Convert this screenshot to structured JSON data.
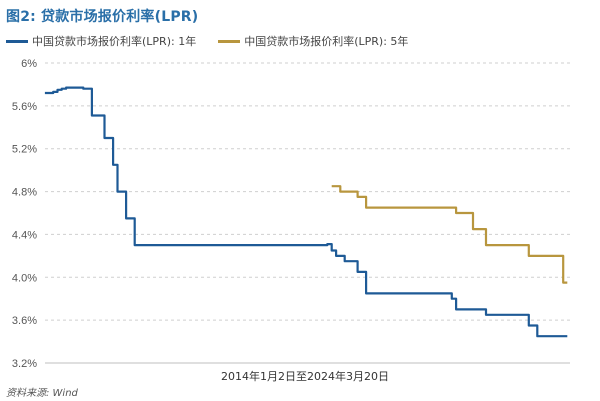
{
  "title": "图2: 贷款市场报价利率(LPR)",
  "source": "资料来源: Wind",
  "chart_data": {
    "type": "line",
    "xlabel": "2014年1月2日至2024年3月20日",
    "ylabel": "",
    "ylim": [
      3.2,
      6.0
    ],
    "yticks": [
      "6%",
      "5.6%",
      "5.2%",
      "4.8%",
      "4.4%",
      "4.0%",
      "3.6%",
      "3.2%"
    ],
    "grid": "horizontal-dashed",
    "legend_position": "top-left",
    "series": [
      {
        "name": "中国贷款市场报价利率(LPR): 1年",
        "color": "#1e5a96",
        "points": [
          [
            "2014-01",
            5.72
          ],
          [
            "2014-03",
            5.73
          ],
          [
            "2014-04",
            5.75
          ],
          [
            "2014-05",
            5.76
          ],
          [
            "2014-06",
            5.77
          ],
          [
            "2014-10",
            5.76
          ],
          [
            "2014-12",
            5.51
          ],
          [
            "2015-03",
            5.3
          ],
          [
            "2015-05",
            5.05
          ],
          [
            "2015-06",
            4.8
          ],
          [
            "2015-08",
            4.55
          ],
          [
            "2015-10",
            4.3
          ],
          [
            "2019-07",
            4.31
          ],
          [
            "2019-08",
            4.25
          ],
          [
            "2019-09",
            4.2
          ],
          [
            "2019-11",
            4.15
          ],
          [
            "2020-02",
            4.05
          ],
          [
            "2020-04",
            3.85
          ],
          [
            "2021-12",
            3.8
          ],
          [
            "2022-01",
            3.7
          ],
          [
            "2022-08",
            3.65
          ],
          [
            "2023-06",
            3.55
          ],
          [
            "2023-08",
            3.45
          ],
          [
            "2024-03",
            3.45
          ]
        ]
      },
      {
        "name": "中国贷款市场报价利率(LPR): 5年",
        "color": "#b8963e",
        "points": [
          [
            "2019-08",
            4.85
          ],
          [
            "2019-10",
            4.8
          ],
          [
            "2019-11",
            4.8
          ],
          [
            "2020-02",
            4.75
          ],
          [
            "2020-04",
            4.65
          ],
          [
            "2022-01",
            4.6
          ],
          [
            "2022-05",
            4.45
          ],
          [
            "2022-08",
            4.3
          ],
          [
            "2023-06",
            4.2
          ],
          [
            "2024-02",
            3.95
          ],
          [
            "2024-03",
            3.95
          ]
        ]
      }
    ]
  }
}
